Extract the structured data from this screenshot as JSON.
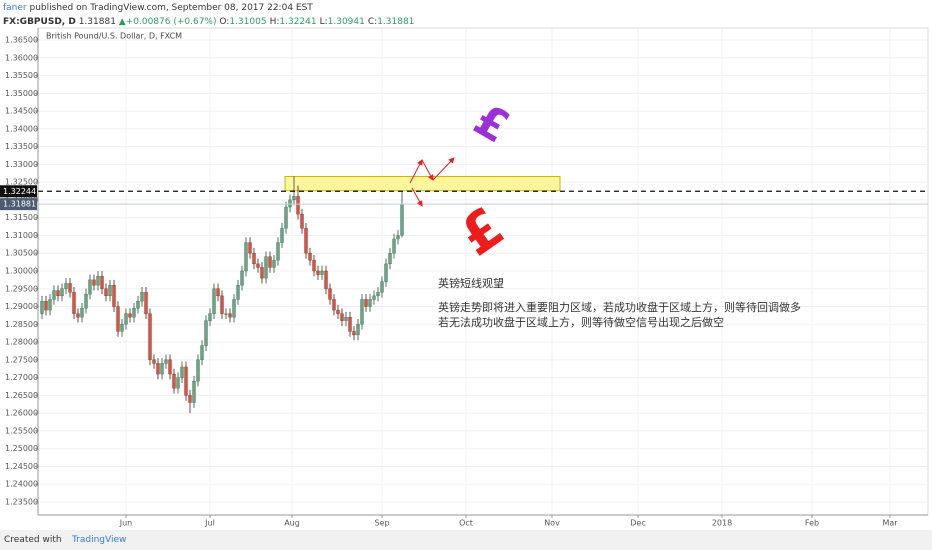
{
  "header": {
    "author": "faner",
    "published": "published on TradingView.com, September 08, 2017 22:04 EST",
    "symbol": "FX:GBPUSD, D",
    "price": "1.31881",
    "change": "▲+0.00876 (+0.67%)",
    "ohlc": [
      {
        "key": "O:",
        "value": "1.31005"
      },
      {
        "key": "H:",
        "value": "1.32241"
      },
      {
        "key": "L:",
        "value": "1.30941"
      },
      {
        "key": "C:",
        "value": "1.31881"
      }
    ]
  },
  "chart_data": {
    "type": "candlestick",
    "title": "British Pound/U.S. Dollar, D, FXCM",
    "x": [
      0,
      1,
      2,
      3,
      4,
      5,
      6,
      7,
      8,
      9,
      10,
      11,
      12,
      13,
      14,
      15,
      16,
      17,
      18,
      19,
      20,
      21,
      22,
      23,
      24,
      25,
      26,
      27,
      28,
      29,
      30,
      31,
      32,
      33,
      34,
      35,
      36,
      37,
      38,
      39,
      40,
      41,
      42,
      43,
      44,
      45,
      46,
      47,
      48,
      49,
      50,
      51,
      52,
      53,
      54,
      55,
      56,
      57,
      58,
      59,
      60,
      61,
      62,
      63,
      64,
      65,
      66,
      67,
      68,
      69,
      70,
      71,
      72,
      73,
      74,
      75,
      76,
      77,
      78,
      79,
      80,
      81,
      82,
      83,
      84,
      85,
      86,
      87,
      88,
      89,
      90
    ],
    "open": [
      1.288,
      1.2915,
      1.289,
      1.292,
      1.2945,
      1.293,
      1.295,
      1.2965,
      1.294,
      1.288,
      1.287,
      1.2895,
      1.2935,
      1.2975,
      1.296,
      1.2985,
      1.295,
      1.293,
      1.296,
      1.29,
      1.283,
      1.285,
      1.288,
      1.287,
      1.2895,
      1.2915,
      1.294,
      1.288,
      1.275,
      1.274,
      1.271,
      1.274,
      1.275,
      1.271,
      1.267,
      1.27,
      1.273,
      1.265,
      1.263,
      1.269,
      1.275,
      1.279,
      1.286,
      1.288,
      1.295,
      1.293,
      1.288,
      1.288,
      1.287,
      1.292,
      1.296,
      1.3,
      1.308,
      1.305,
      1.302,
      1.301,
      1.298,
      1.304,
      1.301,
      1.303,
      1.308,
      1.312,
      1.318,
      1.32,
      1.321,
      1.316,
      1.312,
      1.305,
      1.303,
      1.3,
      1.299,
      1.3,
      1.295,
      1.292,
      1.289,
      1.288,
      1.286,
      1.287,
      1.283,
      1.282,
      1.285,
      1.292,
      1.29,
      1.292,
      1.293,
      1.294,
      1.297,
      1.302,
      1.305,
      1.309,
      1.31005
    ],
    "high": [
      1.293,
      1.293,
      1.2935,
      1.296,
      1.296,
      1.2965,
      1.298,
      1.298,
      1.2955,
      1.2895,
      1.291,
      1.295,
      1.299,
      1.299,
      1.3,
      1.3,
      1.2965,
      1.2975,
      1.2975,
      1.2915,
      1.2865,
      1.2895,
      1.2895,
      1.291,
      1.293,
      1.2955,
      1.2955,
      1.2895,
      1.2765,
      1.2755,
      1.2755,
      1.2765,
      1.2765,
      1.2725,
      1.2715,
      1.2745,
      1.2745,
      1.2665,
      1.2705,
      1.2765,
      1.2805,
      1.2875,
      1.2895,
      1.2965,
      1.2965,
      1.2945,
      1.2895,
      1.2895,
      1.2935,
      1.2975,
      1.3015,
      1.3095,
      1.3095,
      1.3065,
      1.3035,
      1.3025,
      1.3055,
      1.3055,
      1.3045,
      1.3095,
      1.3135,
      1.3195,
      1.3215,
      1.3267,
      1.324,
      1.3175,
      1.3135,
      1.3065,
      1.3045,
      1.3015,
      1.3015,
      1.3015,
      1.2965,
      1.2935,
      1.2905,
      1.2895,
      1.2885,
      1.2885,
      1.2845,
      1.2865,
      1.2935,
      1.2935,
      1.2935,
      1.2945,
      1.2955,
      1.2985,
      1.3035,
      1.3065,
      1.3105,
      1.3115,
      1.32241
    ],
    "low": [
      1.2865,
      1.2875,
      1.2875,
      1.2905,
      1.2915,
      1.2915,
      1.2935,
      1.2925,
      1.2865,
      1.2855,
      1.2855,
      1.288,
      1.292,
      1.2945,
      1.2945,
      1.2935,
      1.2915,
      1.2915,
      1.2885,
      1.2815,
      1.2815,
      1.2835,
      1.2855,
      1.2855,
      1.288,
      1.29,
      1.2865,
      1.2735,
      1.2725,
      1.2695,
      1.2695,
      1.2725,
      1.2695,
      1.2655,
      1.2655,
      1.2685,
      1.2635,
      1.26,
      1.2615,
      1.2675,
      1.2735,
      1.2775,
      1.2845,
      1.2865,
      1.2915,
      1.2865,
      1.2865,
      1.2855,
      1.2855,
      1.2905,
      1.2945,
      1.2985,
      1.3035,
      1.3005,
      1.2995,
      1.2965,
      1.2965,
      1.2995,
      1.2995,
      1.3015,
      1.3065,
      1.3105,
      1.3165,
      1.3185,
      1.3145,
      1.3105,
      1.3035,
      1.3015,
      1.2985,
      1.2975,
      1.2975,
      1.2935,
      1.2905,
      1.2875,
      1.2865,
      1.2845,
      1.2845,
      1.2815,
      1.2805,
      1.2805,
      1.2835,
      1.2885,
      1.2885,
      1.2905,
      1.2915,
      1.2925,
      1.2955,
      1.3005,
      1.3035,
      1.3075,
      1.30941
    ],
    "close": [
      1.2915,
      1.289,
      1.292,
      1.2945,
      1.293,
      1.295,
      1.2965,
      1.294,
      1.288,
      1.287,
      1.2895,
      1.2935,
      1.2975,
      1.296,
      1.2985,
      1.295,
      1.293,
      1.296,
      1.29,
      1.283,
      1.285,
      1.288,
      1.287,
      1.2895,
      1.2915,
      1.294,
      1.288,
      1.275,
      1.274,
      1.271,
      1.274,
      1.275,
      1.271,
      1.267,
      1.27,
      1.273,
      1.265,
      1.263,
      1.269,
      1.275,
      1.279,
      1.286,
      1.288,
      1.295,
      1.293,
      1.288,
      1.288,
      1.287,
      1.292,
      1.296,
      1.3,
      1.308,
      1.305,
      1.302,
      1.301,
      1.298,
      1.304,
      1.301,
      1.303,
      1.308,
      1.312,
      1.318,
      1.32,
      1.321,
      1.316,
      1.312,
      1.305,
      1.303,
      1.3,
      1.299,
      1.3,
      1.295,
      1.292,
      1.289,
      1.288,
      1.286,
      1.287,
      1.283,
      1.282,
      1.285,
      1.292,
      1.29,
      1.292,
      1.293,
      1.294,
      1.297,
      1.302,
      1.305,
      1.309,
      1.31,
      1.31881
    ],
    "up_color": "#6ba583",
    "down_color": "#d75442",
    "xlim": [
      -1,
      221.5
    ],
    "xticks": [
      {
        "value": 21,
        "label": "Jun"
      },
      {
        "value": 42,
        "label": "Jul"
      },
      {
        "value": 62.5,
        "label": "Aug"
      },
      {
        "value": 85,
        "label": "Sep"
      },
      {
        "value": 106,
        "label": "Oct"
      },
      {
        "value": 127.5,
        "label": "Nov"
      },
      {
        "value": 149,
        "label": "Dec"
      },
      {
        "value": 170,
        "label": "2018"
      },
      {
        "value": 192.5,
        "label": "Feb"
      },
      {
        "value": 212,
        "label": "Mar"
      }
    ],
    "ylim": [
      1.23134,
      1.36838
    ],
    "yticks": [
      {
        "value": 1.235,
        "label": "1.23500"
      },
      {
        "value": 1.24,
        "label": "1.24000"
      },
      {
        "value": 1.245,
        "label": "1.24500"
      },
      {
        "value": 1.25,
        "label": "1.25000"
      },
      {
        "value": 1.255,
        "label": "1.25500"
      },
      {
        "value": 1.26,
        "label": "1.26000"
      },
      {
        "value": 1.265,
        "label": "1.26500"
      },
      {
        "value": 1.27,
        "label": "1.27000"
      },
      {
        "value": 1.275,
        "label": "1.27500"
      },
      {
        "value": 1.28,
        "label": "1.28000"
      },
      {
        "value": 1.285,
        "label": "1.28500"
      },
      {
        "value": 1.29,
        "label": "1.29000"
      },
      {
        "value": 1.295,
        "label": "1.29500"
      },
      {
        "value": 1.3,
        "label": "1.30000"
      },
      {
        "value": 1.305,
        "label": "1.30500"
      },
      {
        "value": 1.31,
        "label": "1.31000"
      },
      {
        "value": 1.315,
        "label": "1.31500"
      },
      {
        "value": 1.32,
        "label": "1.32000"
      },
      {
        "value": 1.325,
        "label": "1.32500"
      },
      {
        "value": 1.33,
        "label": "1.33000"
      },
      {
        "value": 1.335,
        "label": "1.33500"
      },
      {
        "value": 1.34,
        "label": "1.34000"
      },
      {
        "value": 1.345,
        "label": "1.34500"
      },
      {
        "value": 1.35,
        "label": "1.35000"
      },
      {
        "value": 1.355,
        "label": "1.35500"
      },
      {
        "value": 1.36,
        "label": "1.36000"
      },
      {
        "value": 1.365,
        "label": "1.36500"
      }
    ],
    "grid": true,
    "zone": {
      "x": [
        60.75,
        129.5
      ],
      "y": [
        1.3226,
        1.3266
      ],
      "color": "#fff59d"
    },
    "hline": 1.32244,
    "last_price": 1.31881,
    "annotations": {
      "heading": "英镑短线观望",
      "line1": "英镑走势即将进入重要阻力区域，若成功收盘于区域上方，则等待回调做多",
      "line2": "若无法成功收盘于区域上方，则等待做空信号出现之后做空"
    },
    "symbols": [
      {
        "text": "£",
        "color": "#9b30d9"
      },
      {
        "text": "£",
        "color": "#ee1c1c"
      }
    ]
  },
  "footer": {
    "created": "Created with",
    "brand": "TradingView"
  }
}
